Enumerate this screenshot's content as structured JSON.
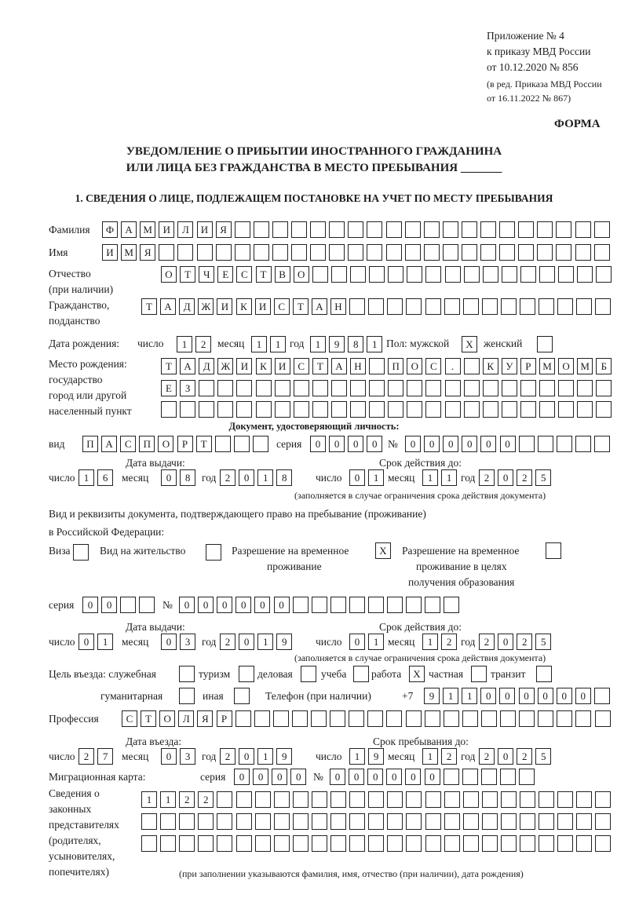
{
  "header": {
    "line1": "Приложение № 4",
    "line2": "к приказу МВД России",
    "line3": "от 10.12.2020 № 856",
    "line4": "(в ред. Приказа МВД России",
    "line5": "от 16.11.2022 № 867)",
    "form_label": "ФОРМА"
  },
  "title": {
    "line1": "УВЕДОМЛЕНИЕ О ПРИБЫТИИ ИНОСТРАННОГО ГРАЖДАНИНА",
    "line2": "ИЛИ ЛИЦА БЕЗ ГРАЖДАНСТВА В МЕСТО ПРЕБЫВАНИЯ _______",
    "section1": "1. СВЕДЕНИЯ О ЛИЦЕ, ПОДЛЕЖАЩЕМ ПОСТАНОВКЕ НА УЧЕТ ПО МЕСТУ ПРЕБЫВАНИЯ"
  },
  "labels": {
    "surname": "Фамилия",
    "name": "Имя",
    "patronymic1": "Отчество",
    "patronymic2": "(при наличии)",
    "citizenship1": "Гражданство,",
    "citizenship2": "подданство",
    "birth_date": "Дата рождения:",
    "day": "число",
    "month": "месяц",
    "year": "год",
    "sex_male": "Пол: мужской",
    "sex_female": "женский",
    "birthplace1": "Место рождения:",
    "birthplace2": "государство",
    "birthplace3": "город или другой",
    "birthplace4": "населенный пункт",
    "id_doc": "Документ, удостоверяющий личность:",
    "kind": "вид",
    "series": "серия",
    "number": "№",
    "issue_date": "Дата выдачи:",
    "valid_until": "Срок действия до:",
    "validity_note": "(заполняется в случае ограничения срока действия документа)",
    "right_doc1": "Вид и реквизиты документа, подтверждающего право на пребывание (проживание)",
    "right_doc2": "в Российской Федерации:",
    "visa": "Виза",
    "residence_permit": "Вид на жительство",
    "temp_residence1": "Разрешение на временное",
    "temp_residence2": "проживание",
    "temp_edu1": "Разрешение на временное",
    "temp_edu2": "проживание в целях",
    "temp_edu3": "получения образования",
    "purpose": "Цель въезда: служебная",
    "tourism": "туризм",
    "business": "деловая",
    "study": "учеба",
    "work": "работа",
    "private": "частная",
    "transit": "транзит",
    "humanitarian": "гуманитарная",
    "other": "иная",
    "phone": "Телефон (при наличии)",
    "phone_prefix": "+7",
    "profession": "Профессия",
    "entry_date": "Дата въезда:",
    "stay_until": "Срок пребывания до:",
    "migration_card": "Миграционная карта:",
    "reps1": "Сведения о",
    "reps2": "законных",
    "reps3": "представителях",
    "reps4": "(родителях,",
    "reps5": "усыновителях,",
    "reps6": "попечителях)",
    "reps_note": "(при заполнении указываются фамилия, имя, отчество (при наличии), дата рождения)"
  },
  "fields": {
    "surname": "ФАМИЛИЯ",
    "name": "ИМЯ",
    "patronymic": "ОТЧЕСТВО",
    "citizenship": "ТАДЖИКИСТАН",
    "birth_day": "12",
    "birth_month": "11",
    "birth_year": "1981",
    "sex_male": "X",
    "sex_female": "",
    "birthplace_1": "ТАДЖИКИСТАН ПОС. КУРМОМБ",
    "birthplace_2": "ЕЗ",
    "birthplace_3": "",
    "doc_kind": "ПАСПОРТ",
    "doc_series": "0000",
    "doc_number": "000000",
    "doc_issue_day": "16",
    "doc_issue_month": "08",
    "doc_issue_year": "2018",
    "doc_valid_day": "01",
    "doc_valid_month": "11",
    "doc_valid_year": "2025",
    "visa": "",
    "residence_permit": "",
    "temp_residence": "X",
    "temp_edu": "",
    "right_series": "00",
    "right_number": "000000",
    "right_issue_day": "01",
    "right_issue_month": "03",
    "right_issue_year": "2019",
    "right_valid_day": "01",
    "right_valid_month": "12",
    "right_valid_year": "2025",
    "purpose_official": "",
    "purpose_tourism": "",
    "purpose_business": "",
    "purpose_study": "",
    "purpose_work": "X",
    "purpose_private": "",
    "purpose_transit": "",
    "purpose_humanitarian": "",
    "purpose_other": "",
    "phone": "911000000",
    "profession": "СТОЛЯР",
    "entry_day": "27",
    "entry_month": "03",
    "entry_year": "2019",
    "stay_day": "19",
    "stay_month": "12",
    "stay_year": "2025",
    "mig_series": "0000",
    "mig_number": "000000",
    "reps_1": "1122",
    "reps_2": "",
    "reps_3": ""
  }
}
